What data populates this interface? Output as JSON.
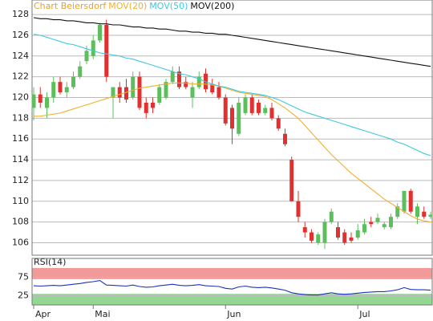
{
  "chart_data": [
    {
      "type": "candlestick",
      "title": "Chart Beiersdorf",
      "title_color": "#e8a020",
      "categories": [
        "Apr",
        null,
        null,
        null,
        null,
        null,
        null,
        null,
        null,
        "Mai",
        null,
        null,
        null,
        null,
        null,
        null,
        null,
        null,
        null,
        null,
        null,
        null,
        null,
        null,
        null,
        null,
        null,
        null,
        null,
        "Jun",
        null,
        null,
        null,
        null,
        null,
        null,
        null,
        null,
        null,
        null,
        null,
        null,
        null,
        null,
        null,
        null,
        null,
        null,
        null,
        "Jul",
        null,
        null,
        null,
        null,
        null,
        null,
        null,
        null,
        null,
        null,
        null
      ],
      "open": [
        119.0,
        120.3,
        119.0,
        120.0,
        121.5,
        120.5,
        121.0,
        122.0,
        123.5,
        124.0,
        125.5,
        127.0,
        120.0,
        121.0,
        121.0,
        120.0,
        122.0,
        119.5,
        119.5,
        119.5,
        120.0,
        121.5,
        122.5,
        121.5,
        120.0,
        121.0,
        122.3,
        121.3,
        121.0,
        120.0,
        119.0,
        116.5,
        118.5,
        120.0,
        119.5,
        118.5,
        119.0,
        118.0,
        116.5,
        114.0,
        110.0,
        107.5,
        107.0,
        106.0,
        106.0,
        108.0,
        107.5,
        107.0,
        106.5,
        106.5,
        107.0,
        108.0,
        108.0,
        107.5,
        107.5,
        108.5,
        109.0,
        111.0,
        108.5,
        109.0,
        108.5
      ],
      "high": [
        121.0,
        121.0,
        120.5,
        122.0,
        122.0,
        121.5,
        122.5,
        123.5,
        125.0,
        126.0,
        127.2,
        127.5,
        121.0,
        121.5,
        121.8,
        122.5,
        122.5,
        120.0,
        120.0,
        121.3,
        121.8,
        123.0,
        123.0,
        122.0,
        121.5,
        122.5,
        122.8,
        121.8,
        121.5,
        120.3,
        119.3,
        120.0,
        120.3,
        120.3,
        119.8,
        119.3,
        119.5,
        118.3,
        117.0,
        114.3,
        111.0,
        108.0,
        107.3,
        107.0,
        108.3,
        109.3,
        108.0,
        107.3,
        107.0,
        107.8,
        108.3,
        108.5,
        108.8,
        108.0,
        108.8,
        109.8,
        111.0,
        111.2,
        109.8,
        109.5,
        109.0
      ],
      "low": [
        117.8,
        119.0,
        118.0,
        119.5,
        120.3,
        120.0,
        120.8,
        121.8,
        123.2,
        123.7,
        125.3,
        121.5,
        118.0,
        119.5,
        119.5,
        119.8,
        118.8,
        118.0,
        118.5,
        119.3,
        119.8,
        121.3,
        120.8,
        120.8,
        119.0,
        120.8,
        120.5,
        120.3,
        119.8,
        117.3,
        115.5,
        116.3,
        118.3,
        118.3,
        118.3,
        118.3,
        117.8,
        116.8,
        115.3,
        110.0,
        108.0,
        106.5,
        106.0,
        105.8,
        105.4,
        107.8,
        106.3,
        105.8,
        106.0,
        106.3,
        106.8,
        107.5,
        107.8,
        107.3,
        107.3,
        108.3,
        108.8,
        108.8,
        107.8,
        108.3,
        108.3
      ],
      "close": [
        120.3,
        119.5,
        120.0,
        121.5,
        120.5,
        121.0,
        122.0,
        123.0,
        124.5,
        125.5,
        127.0,
        122.0,
        121.0,
        120.0,
        119.8,
        122.0,
        119.0,
        118.5,
        119.0,
        121.0,
        121.5,
        122.5,
        121.0,
        121.0,
        121.0,
        122.0,
        120.8,
        120.5,
        120.0,
        117.5,
        117.0,
        119.5,
        120.0,
        118.5,
        118.5,
        119.0,
        118.0,
        117.0,
        115.5,
        110.0,
        108.5,
        107.0,
        106.2,
        106.8,
        108.0,
        109.0,
        106.5,
        106.0,
        106.2,
        107.2,
        107.8,
        107.8,
        108.4,
        107.8,
        108.5,
        109.5,
        111.0,
        109.0,
        109.5,
        108.5,
        108.7
      ],
      "up_color": "#5cbf5c",
      "down_color": "#e03030",
      "series": [
        {
          "name": "MOV(20)",
          "color": "#f0b030",
          "values": [
            118.2,
            118.2,
            118.3,
            118.4,
            118.5,
            118.7,
            118.9,
            119.1,
            119.3,
            119.5,
            119.7,
            119.9,
            120.1,
            120.3,
            120.5,
            120.7,
            120.9,
            121.0,
            121.1,
            121.2,
            121.3,
            121.4,
            121.4,
            121.4,
            121.3,
            121.3,
            121.3,
            121.2,
            121.1,
            120.9,
            120.7,
            120.5,
            120.4,
            120.3,
            120.2,
            120.1,
            119.8,
            119.4,
            119.0,
            118.5,
            118.0,
            117.3,
            116.6,
            115.9,
            115.2,
            114.5,
            113.9,
            113.3,
            112.7,
            112.2,
            111.7,
            111.2,
            110.7,
            110.2,
            109.8,
            109.4,
            109.0,
            108.6,
            108.3,
            108.1,
            108.0
          ]
        },
        {
          "name": "MOV(50)",
          "color": "#40c8e0",
          "values": [
            126.1,
            126.0,
            125.8,
            125.6,
            125.4,
            125.2,
            125.1,
            124.9,
            124.7,
            124.5,
            124.3,
            124.2,
            124.1,
            124.0,
            123.8,
            123.7,
            123.5,
            123.3,
            123.1,
            122.9,
            122.7,
            122.5,
            122.3,
            122.2,
            122.0,
            121.8,
            121.5,
            121.3,
            121.1,
            121.0,
            120.8,
            120.6,
            120.5,
            120.4,
            120.3,
            120.2,
            120.0,
            119.8,
            119.5,
            119.2,
            118.9,
            118.6,
            118.4,
            118.2,
            118.0,
            117.8,
            117.6,
            117.4,
            117.2,
            117.0,
            116.8,
            116.6,
            116.4,
            116.2,
            116.0,
            115.7,
            115.5,
            115.2,
            114.9,
            114.6,
            114.4
          ]
        },
        {
          "name": "MOV(200)",
          "color": "#111111",
          "values": [
            127.7,
            127.6,
            127.6,
            127.5,
            127.5,
            127.4,
            127.4,
            127.3,
            127.2,
            127.2,
            127.1,
            127.1,
            127.0,
            127.0,
            126.9,
            126.8,
            126.8,
            126.7,
            126.7,
            126.6,
            126.6,
            126.5,
            126.4,
            126.4,
            126.3,
            126.3,
            126.2,
            126.2,
            126.1,
            126.1,
            126.0,
            125.9,
            125.8,
            125.7,
            125.6,
            125.5,
            125.4,
            125.3,
            125.2,
            125.1,
            125.0,
            124.9,
            124.8,
            124.7,
            124.6,
            124.5,
            124.4,
            124.3,
            124.2,
            124.1,
            124.0,
            123.9,
            123.8,
            123.7,
            123.6,
            123.5,
            123.4,
            123.3,
            123.2,
            123.1,
            123.0
          ]
        }
      ],
      "ylim": [
        104.8,
        129.4
      ],
      "yticks": [
        106,
        108,
        110,
        112,
        114,
        116,
        118,
        120,
        122,
        124,
        126,
        128
      ],
      "grid": true
    },
    {
      "type": "line",
      "title": "RSI(14)",
      "series": [
        {
          "name": "RSI(14)",
          "color": "#2030c0",
          "values": [
            52,
            51,
            52,
            53,
            52,
            54,
            56,
            58,
            61,
            63,
            66,
            54,
            53,
            52,
            51,
            54,
            50,
            48,
            49,
            52,
            54,
            56,
            53,
            52,
            53,
            55,
            52,
            51,
            50,
            45,
            43,
            49,
            51,
            48,
            47,
            48,
            46,
            43,
            40,
            33,
            30,
            28,
            27,
            27,
            30,
            33,
            30,
            29,
            30,
            32,
            34,
            35,
            36,
            36,
            38,
            41,
            47,
            42,
            41,
            41,
            40
          ]
        }
      ],
      "bands": [
        {
          "from": 70,
          "to": 100,
          "color": "#f08888"
        },
        {
          "from": 0,
          "to": 30,
          "color": "#80d080"
        }
      ],
      "ylim": [
        0,
        100
      ],
      "yticks": [
        25,
        75
      ],
      "grid": true
    }
  ]
}
